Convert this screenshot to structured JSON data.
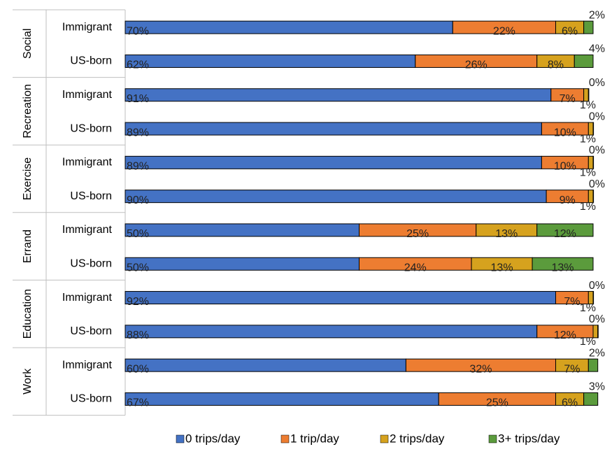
{
  "chart_data": {
    "type": "bar",
    "orientation": "horizontal",
    "stacked": true,
    "title": "",
    "xlabel": "",
    "ylabel": "",
    "xlim": [
      0,
      100
    ],
    "grid": false,
    "legend_position": "bottom",
    "series": [
      {
        "name": "0 trips/day",
        "color": "#4472C4"
      },
      {
        "name": "1 trip/day",
        "color": "#ED7D31"
      },
      {
        "name": "2 trips/day",
        "color": "#D6A21E"
      },
      {
        "name": "3+ trips/day",
        "color": "#5B9B3C"
      }
    ],
    "groups": [
      {
        "name": "Social",
        "rows": [
          {
            "label": "Immigrant",
            "values": [
              70,
              22,
              6,
              2
            ],
            "labels": [
              "70%",
              "22%",
              "6%",
              "2%"
            ]
          },
          {
            "label": "US-born",
            "values": [
              62,
              26,
              8,
              4
            ],
            "labels": [
              "62%",
              "26%",
              "8%",
              "4%"
            ]
          }
        ]
      },
      {
        "name": "Recreation",
        "rows": [
          {
            "label": "Immigrant",
            "values": [
              91,
              7,
              1,
              0
            ],
            "labels": [
              "91%",
              "7%",
              "1%",
              "0%"
            ]
          },
          {
            "label": "US-born",
            "values": [
              89,
              10,
              1,
              0
            ],
            "labels": [
              "89%",
              "10%",
              "1%",
              "0%"
            ]
          }
        ]
      },
      {
        "name": "Exercise",
        "rows": [
          {
            "label": "Immigrant",
            "values": [
              89,
              10,
              1,
              0
            ],
            "labels": [
              "89%",
              "10%",
              "1%",
              "0%"
            ]
          },
          {
            "label": "US-born",
            "values": [
              90,
              9,
              1,
              0
            ],
            "labels": [
              "90%",
              "9%",
              "1%",
              "0%"
            ]
          }
        ]
      },
      {
        "name": "Errand",
        "rows": [
          {
            "label": "Immigrant",
            "values": [
              50,
              25,
              13,
              12
            ],
            "labels": [
              "50%",
              "25%",
              "13%",
              "12%"
            ]
          },
          {
            "label": "US-born",
            "values": [
              50,
              24,
              13,
              13
            ],
            "labels": [
              "50%",
              "24%",
              "13%",
              "13%"
            ]
          }
        ]
      },
      {
        "name": "Education",
        "rows": [
          {
            "label": "Immigrant",
            "values": [
              92,
              7,
              1,
              0
            ],
            "labels": [
              "92%",
              "7%",
              "1%",
              "0%"
            ]
          },
          {
            "label": "US-born",
            "values": [
              88,
              12,
              1,
              0
            ],
            "labels": [
              "88%",
              "12%",
              "1%",
              "0%"
            ]
          }
        ]
      },
      {
        "name": "Work",
        "rows": [
          {
            "label": "Immigrant",
            "values": [
              60,
              32,
              7,
              2
            ],
            "labels": [
              "60%",
              "32%",
              "7%",
              "2%"
            ]
          },
          {
            "label": "US-born",
            "values": [
              67,
              25,
              6,
              3
            ],
            "labels": [
              "67%",
              "25%",
              "6%",
              "3%"
            ]
          }
        ]
      }
    ]
  }
}
